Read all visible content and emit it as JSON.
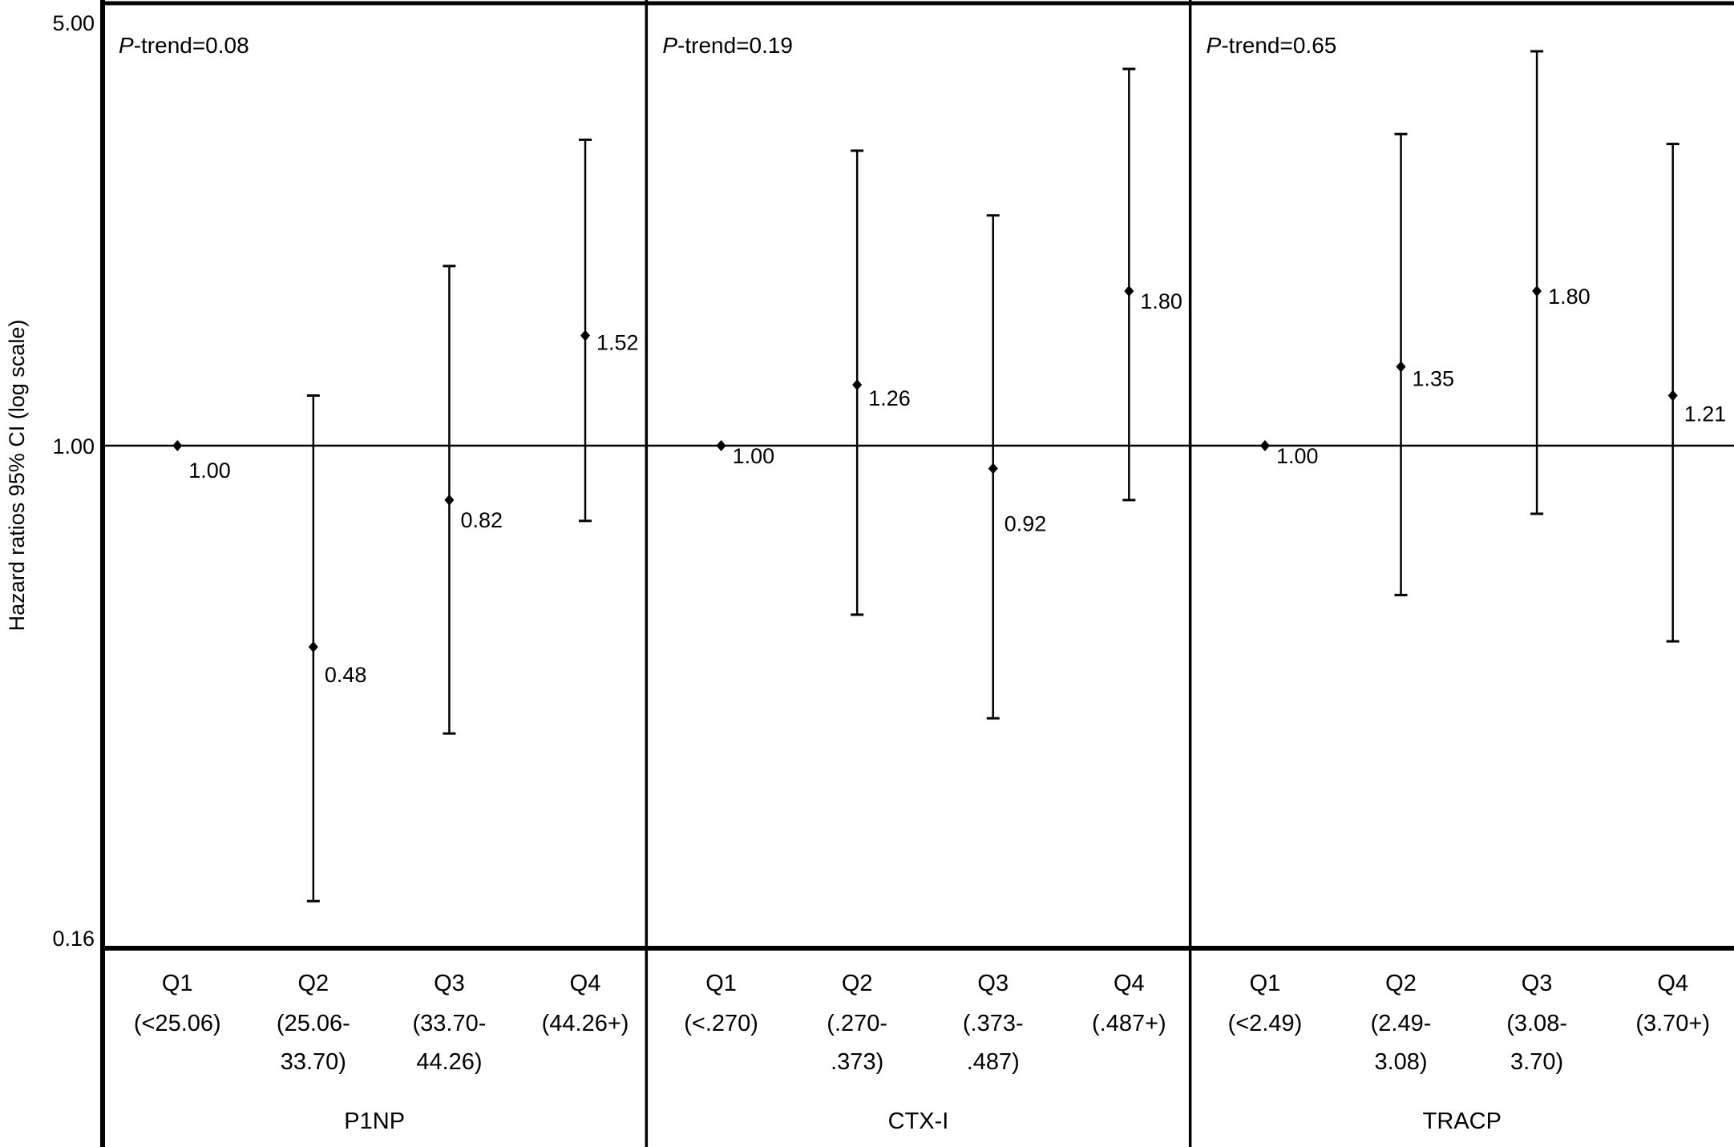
{
  "chart_data": {
    "type": "scatter",
    "subtype": "forest-plot-error-bars",
    "ylabel": "Hazard ratios 95% CI (log scale)",
    "yscale": "log",
    "ylim": [
      0.16,
      5.0
    ],
    "yticks": [
      "5.00",
      "1.00",
      "0.16"
    ],
    "reference_line": 1.0,
    "panels": [
      {
        "name": "P1NP",
        "p_trend_prefix": "P",
        "p_trend_text": "-trend=0.08",
        "categories": [
          {
            "q": "Q1",
            "range1": "(<25.06)",
            "range2": ""
          },
          {
            "q": "Q2",
            "range1": "(25.06-",
            "range2": "33.70)"
          },
          {
            "q": "Q3",
            "range1": "(33.70-",
            "range2": "44.26)"
          },
          {
            "q": "Q4",
            "range1": "(44.26+)",
            "range2": ""
          }
        ],
        "hr": [
          1.0,
          0.48,
          0.82,
          1.52
        ],
        "hr_labels": [
          "1.00",
          "0.48",
          "0.82",
          "1.52"
        ],
        "ci_lower": [
          null,
          0.19,
          0.35,
          0.76
        ],
        "ci_upper": [
          null,
          1.21,
          1.98,
          3.2
        ]
      },
      {
        "name": "CTX-I",
        "p_trend_prefix": "P",
        "p_trend_text": "-trend=0.19",
        "categories": [
          {
            "q": "Q1",
            "range1": "(<.270)",
            "range2": ""
          },
          {
            "q": "Q2",
            "range1": "(.270-",
            "range2": ".373)"
          },
          {
            "q": "Q3",
            "range1": "(.373-",
            "range2": ".487)"
          },
          {
            "q": "Q4",
            "range1": "(.487+)",
            "range2": ""
          }
        ],
        "hr": [
          1.0,
          1.26,
          0.92,
          1.8
        ],
        "hr_labels": [
          "1.00",
          "1.26",
          "0.92",
          "1.80"
        ],
        "ci_lower": [
          null,
          0.54,
          0.37,
          0.82
        ],
        "ci_upper": [
          null,
          3.07,
          2.4,
          4.19
        ]
      },
      {
        "name": "TRACP",
        "p_trend_prefix": "P",
        "p_trend_text": "-trend=0.65",
        "categories": [
          {
            "q": "Q1",
            "range1": "(<2.49)",
            "range2": ""
          },
          {
            "q": "Q2",
            "range1": "(2.49-",
            "range2": "3.08)"
          },
          {
            "q": "Q3",
            "range1": "(3.08-",
            "range2": "3.70)"
          },
          {
            "q": "Q4",
            "range1": "(3.70+)",
            "range2": ""
          }
        ],
        "hr": [
          1.0,
          1.35,
          1.8,
          1.21
        ],
        "hr_labels": [
          "1.00",
          "1.35",
          "1.80",
          "1.21"
        ],
        "ci_lower": [
          null,
          0.58,
          0.78,
          0.49
        ],
        "ci_upper": [
          null,
          3.27,
          4.48,
          3.15
        ]
      }
    ]
  }
}
